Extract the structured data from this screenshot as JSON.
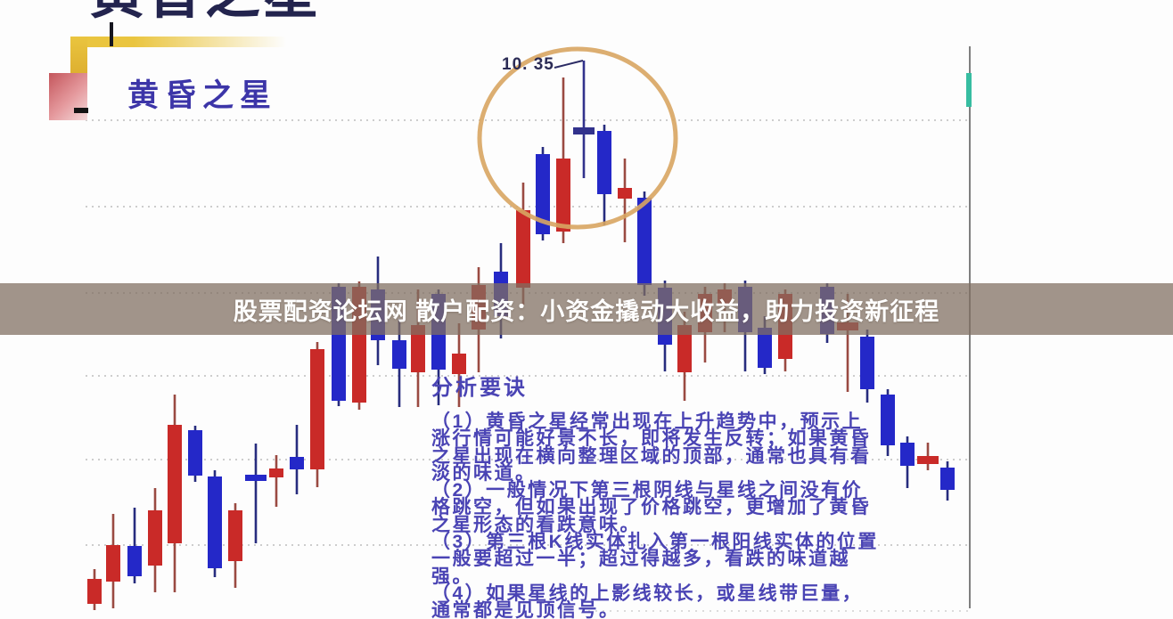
{
  "page": {
    "top_title_cropped": "黄昏之星",
    "calligraphy_title": "黄昏之星"
  },
  "banner": {
    "text": "股票配资论坛网 散户配资：小资金撬动大收益，助力投资新征程"
  },
  "analysis": {
    "title": "分析要诀",
    "lines": [
      "（1）黄昏之星经常出现在上升趋势中，预示上",
      "涨行情可能好景不长，即将发生反转；如果黄昏",
      "之星出现在横向整理区域的顶部，通常也具有看",
      "淡的味道。",
      "（2）一般情况下第三根阴线与星线之间没有价",
      "格跳空，但如果出现了价格跳空，更增加了黄昏",
      "之星形态的看跌意味。",
      "（3）第三根K线实体扎入第一根阳线实体的位置",
      "一般要超过一半；超过得越多，看跌的味道越",
      "强。",
      "（4）如果星线的上影线较长，或星线带巨量，",
      "通常都是见顶信号。"
    ]
  },
  "chart_data": {
    "type": "candlestick",
    "title": "黄昏之星",
    "units": "pixel coordinates; no numeric price scale shown except annotation 10.35 at pattern high",
    "price_label": "10. 35",
    "gridlines": {
      "ys": [
        135,
        232,
        329,
        422,
        516,
        612
      ],
      "x_range": [
        96,
        1088
      ],
      "partial": {
        "y": 686,
        "x_range": [
          660,
          1088
        ]
      }
    },
    "axis_line": {
      "x": 1088,
      "y_range": [
        52,
        683
      ]
    },
    "teal_mark": {
      "x": 1087,
      "y_range": [
        82,
        120
      ]
    },
    "highlight_ellipse": {
      "cx": 648,
      "cy": 155,
      "rx": 110,
      "ry": 100
    },
    "leader_line": {
      "x1": 622,
      "y1": 76,
      "x2": 654,
      "y2": 68
    },
    "candles": [
      {
        "x": 106,
        "color": "red",
        "body": [
          650,
          678
        ],
        "wick": [
          639,
          685
        ]
      },
      {
        "x": 127,
        "color": "red",
        "body": [
          612,
          653
        ],
        "wick": [
          577,
          683
        ]
      },
      {
        "x": 151,
        "color": "blue",
        "body": [
          613,
          647
        ],
        "wick": [
          570,
          655
        ]
      },
      {
        "x": 174,
        "color": "red",
        "body": [
          573,
          635
        ],
        "wick": [
          548,
          665
        ]
      },
      {
        "x": 196,
        "color": "red",
        "body": [
          477,
          610
        ],
        "wick": [
          443,
          665
        ]
      },
      {
        "x": 219,
        "color": "blue",
        "body": [
          483,
          534
        ],
        "wick": [
          478,
          541
        ]
      },
      {
        "x": 241,
        "color": "blue",
        "body": [
          535,
          638
        ],
        "wick": [
          528,
          648
        ]
      },
      {
        "x": 264,
        "color": "red",
        "body": [
          573,
          630
        ],
        "wick": [
          565,
          660
        ]
      },
      {
        "x": 287,
        "color": "blue",
        "bar": [
          533,
          540
        ],
        "wick": [
          498,
          610
        ]
      },
      {
        "x": 310,
        "color": "red",
        "body": [
          526,
          536
        ],
        "wick": [
          511,
          569
        ]
      },
      {
        "x": 333,
        "color": "blue",
        "body": [
          513,
          527
        ],
        "wick": [
          477,
          555
        ]
      },
      {
        "x": 356,
        "color": "red",
        "body": [
          392,
          527
        ],
        "wick": [
          384,
          547
        ]
      },
      {
        "x": 380,
        "color": "blue",
        "body": [
          322,
          450
        ],
        "wick": [
          318,
          456
        ]
      },
      {
        "x": 403,
        "color": "red",
        "body": [
          322,
          452
        ],
        "wick": [
          316,
          460
        ]
      },
      {
        "x": 424,
        "color": "blue",
        "body": [
          325,
          382
        ],
        "wick": [
          288,
          410
        ]
      },
      {
        "x": 448,
        "color": "blue",
        "body": [
          382,
          414
        ],
        "wick": [
          358,
          457
        ]
      },
      {
        "x": 469,
        "color": "red",
        "body": [
          365,
          418
        ],
        "wick": [
          325,
          457
        ]
      },
      {
        "x": 492,
        "color": "blue",
        "body": [
          330,
          415
        ],
        "wick": [
          325,
          455
        ]
      },
      {
        "x": 515,
        "color": "red",
        "body": [
          397,
          420
        ],
        "wick": [
          363,
          457
        ]
      },
      {
        "x": 537,
        "color": "red",
        "body": [
          320,
          370
        ],
        "wick": [
          300,
          418
        ]
      },
      {
        "x": 562,
        "color": "blue",
        "body": [
          305,
          355
        ],
        "wick": [
          273,
          380
        ]
      },
      {
        "x": 587,
        "color": "red",
        "body": [
          236,
          323
        ],
        "wick": [
          205,
          342
        ]
      },
      {
        "x": 609,
        "color": "blue",
        "body": [
          173,
          263
        ],
        "wick": [
          165,
          270
        ]
      },
      {
        "x": 632,
        "color": "red",
        "body": [
          178,
          260
        ],
        "wick": [
          87,
          273
        ]
      },
      {
        "x": 655,
        "color": "star",
        "bar": [
          143,
          151
        ],
        "wick": [
          68,
          200
        ]
      },
      {
        "x": 678,
        "color": "blue",
        "body": [
          147,
          218
        ],
        "wick": [
          140,
          253
        ]
      },
      {
        "x": 701,
        "color": "red",
        "body": [
          211,
          223
        ],
        "wick": [
          178,
          272
        ]
      },
      {
        "x": 723,
        "color": "blue",
        "body": [
          222,
          320
        ],
        "wick": [
          215,
          332
        ]
      },
      {
        "x": 746,
        "color": "blue",
        "body": [
          323,
          387
        ],
        "wick": [
          315,
          417
        ]
      },
      {
        "x": 768,
        "color": "red",
        "body": [
          365,
          418
        ],
        "wick": [
          350,
          450
        ]
      },
      {
        "x": 791,
        "color": "red",
        "body": [
          330,
          373
        ],
        "wick": [
          322,
          407
        ]
      },
      {
        "x": 813,
        "color": "red",
        "body": [
          325,
          343
        ],
        "wick": [
          318,
          373
        ]
      },
      {
        "x": 836,
        "color": "blue",
        "body": [
          322,
          373
        ],
        "wick": [
          315,
          417
        ]
      },
      {
        "x": 858,
        "color": "blue",
        "body": [
          368,
          413
        ],
        "wick": [
          355,
          420
        ]
      },
      {
        "x": 881,
        "color": "red",
        "body": [
          330,
          403
        ],
        "wick": [
          325,
          417
        ]
      },
      {
        "x": 928,
        "color": "blue",
        "body": [
          322,
          375
        ],
        "wick": [
          318,
          385
        ]
      },
      {
        "x": 951,
        "color": "red",
        "bar": [
          362,
          371
        ],
        "wick": [
          330,
          440
        ]
      },
      {
        "x": 973,
        "color": "blue",
        "body": [
          378,
          437
        ],
        "wick": [
          370,
          452
        ]
      },
      {
        "x": 996,
        "color": "blue",
        "body": [
          443,
          500
        ],
        "wick": [
          437,
          512
        ]
      },
      {
        "x": 1018,
        "color": "blue",
        "body": [
          497,
          523
        ],
        "wick": [
          490,
          548
        ]
      },
      {
        "x": 1041,
        "color": "red",
        "bar": [
          512,
          521
        ],
        "wick": [
          497,
          528
        ]
      },
      {
        "x": 1063,
        "color": "blue",
        "body": [
          525,
          550
        ],
        "wick": [
          518,
          562
        ]
      }
    ]
  },
  "colors": {
    "red_body": "#c92a28",
    "red_wick": "#9a4a42",
    "blue_body": "#2428c8",
    "blue_wick": "#272c7e",
    "star": "#32328c",
    "grid": "#c6c6c6",
    "circle": "#d8a562",
    "axis": "#7f7f7f",
    "teal": "#37bda1",
    "leader": "#2b2b64",
    "banner_bg": "rgba(128,110,97,0.74)",
    "banner_text": "#ffffff",
    "analysis_text": "#4a44b4"
  }
}
